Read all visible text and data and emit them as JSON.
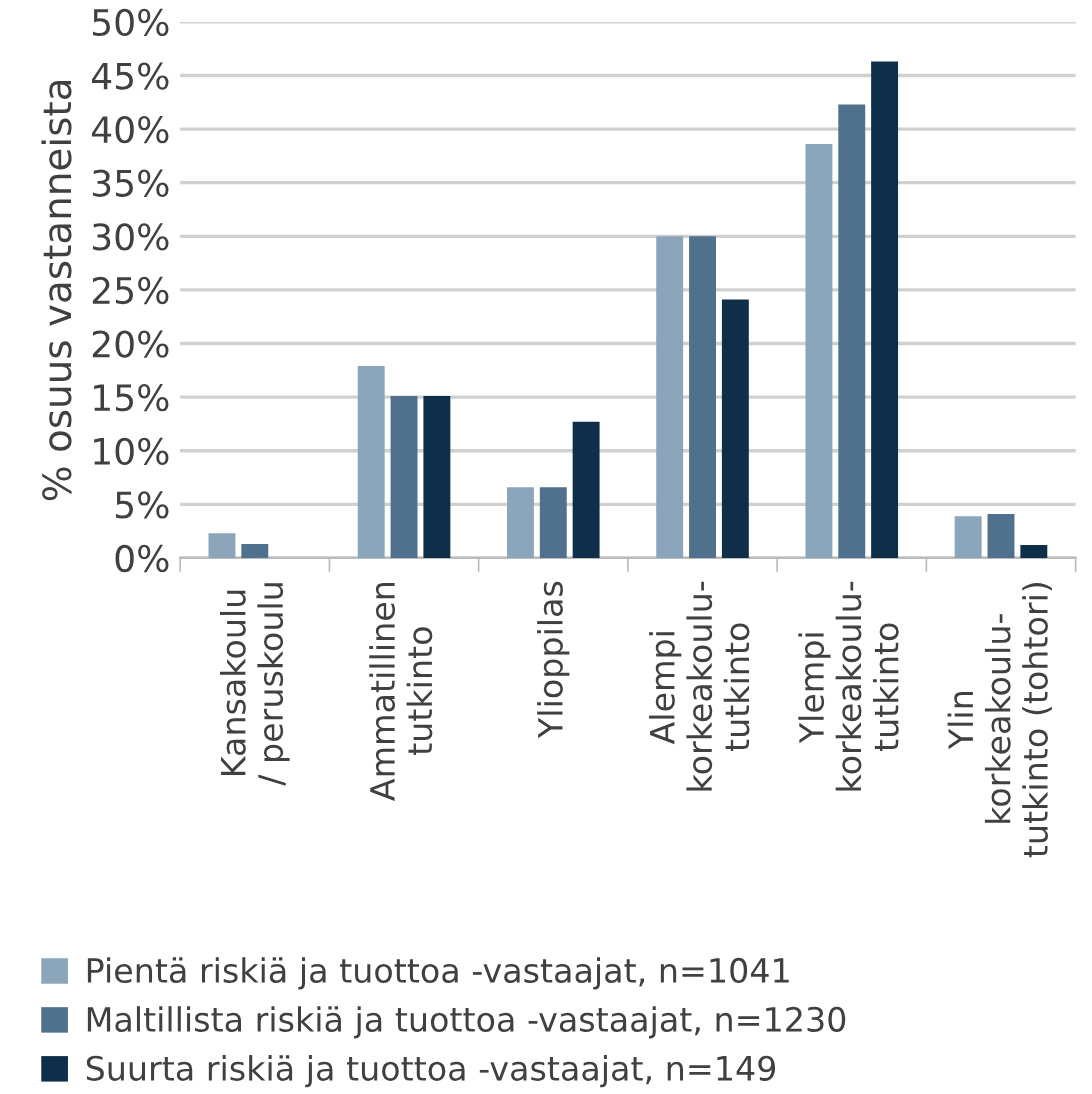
{
  "chart_data": {
    "type": "bar",
    "ylabel": "% osuus vastanneista",
    "categories": [
      "Kansakoulu\n/ peruskoulu",
      "Ammatillinen\ntutkinto",
      "Ylioppilas",
      "Alempi\nkorkeakoulu-\ntutkinto",
      "Ylempi\nkorkeakoulu-\ntutkinto",
      "Ylin\nkorkeakoulu-\ntutkinto (tohtori)"
    ],
    "series": [
      {
        "name": "Pientä riskiä ja tuottoa -vastaajat, n=1041",
        "color": "#8ba5bb",
        "values": [
          2.3,
          17.9,
          6.6,
          30.0,
          38.6,
          3.9
        ]
      },
      {
        "name": "Maltillista riskiä ja tuottoa -vastaajat, n=1230",
        "color": "#4f718e",
        "values": [
          1.3,
          15.1,
          6.6,
          30.0,
          42.3,
          4.1
        ]
      },
      {
        "name": "Suurta riskiä ja tuottoa -vastaajat, n=149",
        "color": "#0f2e4a",
        "values": [
          0,
          15.1,
          12.7,
          24.1,
          46.3,
          1.2
        ]
      }
    ],
    "ylim": [
      0,
      50
    ],
    "yticks": [
      {
        "value": 0,
        "label": "0%"
      },
      {
        "value": 5,
        "label": "5%"
      },
      {
        "value": 10,
        "label": "10%"
      },
      {
        "value": 15,
        "label": "15%"
      },
      {
        "value": 20,
        "label": "20%"
      },
      {
        "value": 25,
        "label": "25%"
      },
      {
        "value": 30,
        "label": "30%"
      },
      {
        "value": 35,
        "label": "35%"
      },
      {
        "value": 40,
        "label": "40%"
      },
      {
        "value": 45,
        "label": "45%"
      },
      {
        "value": 50,
        "label": "50%"
      }
    ],
    "grid": "y",
    "legend": "bottom"
  }
}
